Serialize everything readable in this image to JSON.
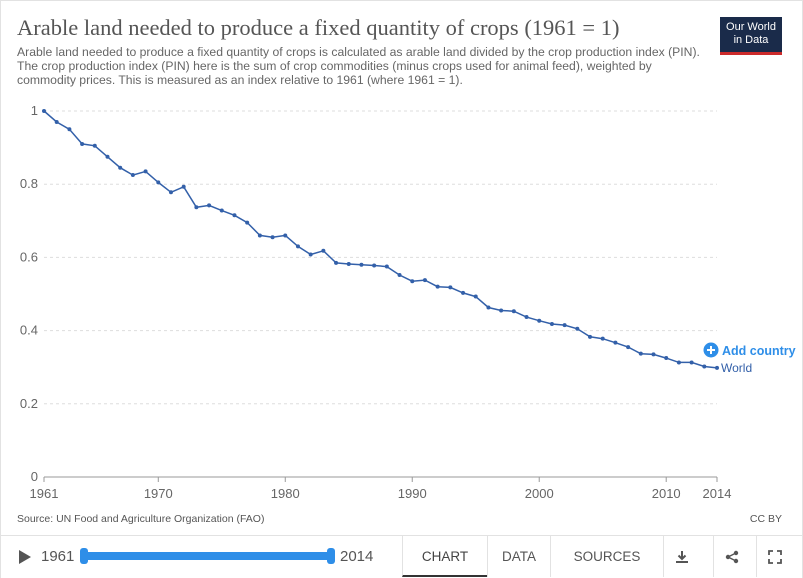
{
  "header": {
    "title": "Arable land needed to produce a fixed quantity of crops (1961 = 1)",
    "subtitle": "Arable land needed to produce a fixed quantity of crops is calculated as arable land divided by the crop production index (PIN). The crop production index (PIN) here is the sum of crop commodities (minus crops used for animal feed), weighted by commodity prices. This is measured as an index relative to 1961 (where 1961 = 1).",
    "logo_line1": "Our World",
    "logo_line2": "in Data"
  },
  "footer": {
    "source": "Source: UN Food and Agriculture Organization (FAO)",
    "license": "CC BY"
  },
  "controls": {
    "start_year": "1961",
    "end_year": "2014",
    "tabs": [
      "CHART",
      "DATA",
      "SOURCES"
    ],
    "active_tab": "CHART"
  },
  "add_country_label": "Add country",
  "colors": {
    "line": "#3360a9",
    "accent": "#2e8ee8",
    "grid": "#dddddd",
    "logo_bg": "#1a2b4a",
    "logo_stripe": "#cc2b2b"
  },
  "chart_data": {
    "type": "line",
    "title": "Arable land needed to produce a fixed quantity of crops (1961 = 1)",
    "xlabel": "",
    "ylabel": "",
    "xlim": [
      1961,
      2014
    ],
    "ylim": [
      0,
      1
    ],
    "x_ticks": [
      "1961",
      "1970",
      "1980",
      "1990",
      "2000",
      "2010",
      "2014"
    ],
    "x_tick_values": [
      1961,
      1970,
      1980,
      1990,
      2000,
      2010,
      2014
    ],
    "y_ticks": [
      "0",
      "0.2",
      "0.4",
      "0.6",
      "0.8",
      "1"
    ],
    "y_tick_values": [
      0,
      0.2,
      0.4,
      0.6,
      0.8,
      1
    ],
    "grid": true,
    "series": [
      {
        "name": "World",
        "x": [
          1961,
          1962,
          1963,
          1964,
          1965,
          1966,
          1967,
          1968,
          1969,
          1970,
          1971,
          1972,
          1973,
          1974,
          1975,
          1976,
          1977,
          1978,
          1979,
          1980,
          1981,
          1982,
          1983,
          1984,
          1985,
          1986,
          1987,
          1988,
          1989,
          1990,
          1991,
          1992,
          1993,
          1994,
          1995,
          1996,
          1997,
          1998,
          1999,
          2000,
          2001,
          2002,
          2003,
          2004,
          2005,
          2006,
          2007,
          2008,
          2009,
          2010,
          2011,
          2012,
          2013,
          2014
        ],
        "values": [
          1.0,
          0.97,
          0.95,
          0.91,
          0.905,
          0.875,
          0.845,
          0.825,
          0.835,
          0.805,
          0.778,
          0.793,
          0.737,
          0.742,
          0.728,
          0.715,
          0.695,
          0.66,
          0.655,
          0.66,
          0.63,
          0.608,
          0.618,
          0.585,
          0.582,
          0.58,
          0.578,
          0.575,
          0.552,
          0.535,
          0.538,
          0.52,
          0.518,
          0.503,
          0.493,
          0.463,
          0.455,
          0.453,
          0.437,
          0.427,
          0.418,
          0.415,
          0.405,
          0.383,
          0.378,
          0.367,
          0.355,
          0.337,
          0.335,
          0.325,
          0.313,
          0.313,
          0.302,
          0.298
        ]
      }
    ]
  }
}
